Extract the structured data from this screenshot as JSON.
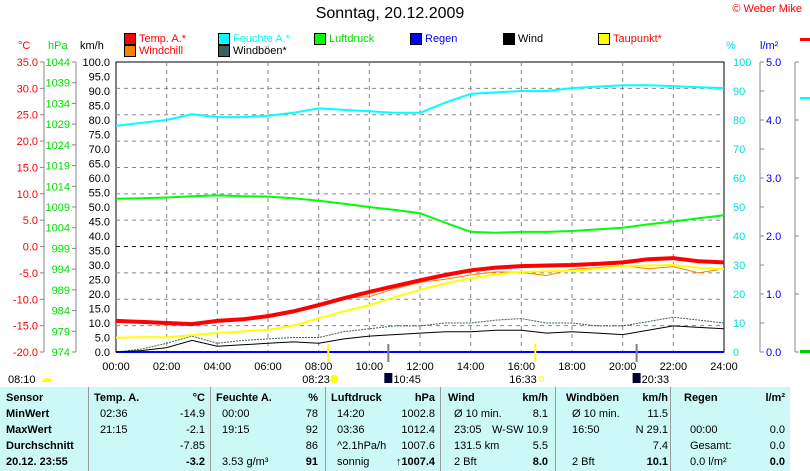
{
  "title": "Sonntag, 20.12.2009",
  "copyright": "© Weber Mike",
  "axis_units": {
    "temp": "°C",
    "pressure": "hPa",
    "wind": "km/h",
    "humidity": "%",
    "rain": "l/m²"
  },
  "legend": [
    {
      "label": "Temp. A.*",
      "color": "#ff0000",
      "text_color": "#ff0000"
    },
    {
      "label": "Feuchte A.*",
      "color": "#00ffff",
      "text_color": "#00ffff"
    },
    {
      "label": "Luftdruck",
      "color": "#00ff00",
      "text_color": "#00dd00"
    },
    {
      "label": "Regen",
      "color": "#0000ff",
      "text_color": "#0000ff"
    },
    {
      "label": "Wind",
      "color": "#000000",
      "text_color": "#000000"
    },
    {
      "label": "Taupunkt*",
      "color": "#ffff00",
      "text_color": "#ff0000"
    },
    {
      "label": "Windchill",
      "color": "#ff8000",
      "text_color": "#ff0000"
    },
    {
      "label": "Windböen*",
      "color": "#406060",
      "text_color": "#000000"
    }
  ],
  "chart_data": {
    "type": "line",
    "xlabel": "",
    "x_ticks": [
      "00:00",
      "02:00",
      "04:00",
      "06:00",
      "08:00",
      "10:00",
      "12:00",
      "14:00",
      "16:00",
      "18:00",
      "20:00",
      "22:00",
      "24:00"
    ],
    "temp_ticks": [
      "35.0",
      "30.0",
      "25.0",
      "20.0",
      "15.0",
      "10.0",
      "5.0",
      "0.0",
      "-5.0",
      "-10.0",
      "-15.0",
      "-20.0"
    ],
    "pressure_ticks": [
      "1044",
      "1039",
      "1034",
      "1029",
      "1024",
      "1019",
      "1014",
      "1009",
      "1004",
      "999",
      "994",
      "989",
      "984",
      "979",
      "974"
    ],
    "wind_ticks": [
      "100.0",
      "95.0",
      "90.0",
      "85.0",
      "80.0",
      "75.0",
      "70.0",
      "65.0",
      "60.0",
      "55.0",
      "50.0",
      "45.0",
      "40.0",
      "35.0",
      "30.0",
      "25.0",
      "20.0",
      "15.0",
      "10.0",
      "5.0",
      "0.0"
    ],
    "humidity_ticks": [
      "100",
      "90",
      "80",
      "70",
      "60",
      "50",
      "40",
      "30",
      "20",
      "10",
      "0"
    ],
    "rain_ticks": [
      "5.0",
      "4.0",
      "3.0",
      "2.0",
      "1.0",
      "0.0"
    ],
    "ranges": {
      "temp": [
        -20,
        35
      ],
      "pressure": [
        974,
        1044
      ],
      "wind": [
        0,
        100
      ],
      "humidity": [
        0,
        100
      ],
      "rain": [
        0,
        5
      ]
    },
    "hours": [
      0,
      1,
      2,
      3,
      4,
      5,
      6,
      7,
      8,
      9,
      10,
      11,
      12,
      13,
      14,
      15,
      16,
      17,
      18,
      19,
      20,
      21,
      22,
      23,
      24
    ],
    "series": [
      {
        "name": "Temp. A.",
        "unit": "°C",
        "color": "#ff0000",
        "values": [
          -14.1,
          -14.3,
          -14.5,
          -14.7,
          -14.1,
          -13.8,
          -13.2,
          -12.3,
          -11.1,
          -9.8,
          -8.6,
          -7.5,
          -6.4,
          -5.4,
          -4.5,
          -4.0,
          -3.7,
          -3.6,
          -3.5,
          -3.3,
          -3.0,
          -2.4,
          -2.2,
          -2.8,
          -3.0
        ]
      },
      {
        "name": "Taupunkt",
        "unit": "°C",
        "color": "#ffff00",
        "values": [
          -17.3,
          -17.2,
          -17.2,
          -16.8,
          -16.4,
          -16.1,
          -15.8,
          -15.0,
          -13.6,
          -12.3,
          -11.1,
          -9.6,
          -8.2,
          -7.0,
          -6.0,
          -5.3,
          -4.8,
          -4.7,
          -4.6,
          -4.2,
          -3.7,
          -3.6,
          -3.5,
          -4.0,
          -4.3
        ]
      },
      {
        "name": "Windchill",
        "unit": "°C",
        "color": "#ff8000",
        "values": [
          -14.1,
          -14.3,
          -14.5,
          -14.7,
          -14.1,
          -13.8,
          -13.2,
          -12.3,
          -11.1,
          -9.8,
          -9.5,
          -8.0,
          -6.8,
          -6.2,
          -5.4,
          -4.8,
          -4.9,
          -5.5,
          -4.3,
          -4.0,
          -3.6,
          -4.2,
          -3.8,
          -5.0,
          -4.2
        ]
      },
      {
        "name": "Feuchte A.",
        "unit": "%",
        "color": "#00ffff",
        "values": [
          78,
          79,
          80,
          82,
          81,
          81,
          81.5,
          82.5,
          84,
          83.5,
          83,
          82.5,
          82.5,
          86,
          89,
          89.5,
          90,
          90,
          91,
          91.5,
          92,
          92,
          91.7,
          91.3,
          91
        ]
      },
      {
        "name": "Luftdruck",
        "unit": "hPa",
        "color": "#00ff00",
        "values": [
          1011,
          1011.1,
          1011.3,
          1011.6,
          1011.8,
          1011.6,
          1011.5,
          1011.1,
          1010.5,
          1009.8,
          1009,
          1008.3,
          1007.5,
          1005.2,
          1003,
          1002.8,
          1003,
          1003,
          1003.2,
          1003.6,
          1004,
          1004.8,
          1005.5,
          1006.3,
          1007
        ]
      },
      {
        "name": "Wind",
        "unit": "km/h",
        "color": "#000000",
        "values": [
          0,
          0.5,
          1.5,
          4,
          2,
          2.5,
          3,
          3.5,
          3,
          4.5,
          5.5,
          6,
          6.5,
          7,
          7,
          7.5,
          7.5,
          6.5,
          7,
          6.5,
          6,
          7.5,
          9,
          8.5,
          8
        ]
      },
      {
        "name": "Windböen",
        "unit": "km/h",
        "color": "#406060",
        "values": [
          0,
          1,
          3,
          5.5,
          3,
          4,
          4.5,
          5,
          5,
          7,
          8,
          9,
          9,
          10,
          10,
          11,
          11.5,
          10,
          10,
          9,
          9,
          10.5,
          12,
          11,
          10
        ]
      },
      {
        "name": "Regen",
        "unit": "l/m²",
        "color": "#0000ff",
        "values": [
          0,
          0,
          0,
          0,
          0,
          0,
          0,
          0,
          0,
          0,
          0,
          0,
          0,
          0,
          0,
          0,
          0,
          0,
          0,
          0,
          0,
          0,
          0,
          0,
          0
        ]
      }
    ],
    "events": [
      {
        "time": "08:10",
        "hour": 8.17,
        "icon": "moon-icon",
        "marker": false
      },
      {
        "time": "08:23",
        "hour": 8.38,
        "icon": "sunrise-icon",
        "marker": "#ffff00"
      },
      {
        "time": "10:45",
        "hour": 10.75,
        "icon": "moonrise-icon",
        "marker": "#808080"
      },
      {
        "time": "16:33",
        "hour": 16.55,
        "icon": "sunset-icon",
        "marker": "#ffff00"
      },
      {
        "time": "20:33",
        "hour": 20.55,
        "icon": "moonset-icon",
        "marker": "#808080"
      }
    ]
  },
  "table": {
    "headers": [
      "Sensor",
      "Temp. A.",
      "°C",
      "Feuchte A.",
      "%",
      "Luftdruck",
      "hPa",
      "Wind",
      "km/h",
      "Windböen",
      "km/h",
      "Regen",
      "l/m²"
    ],
    "rows": [
      [
        "MinWert",
        "02:36",
        "-14.9",
        "00:00",
        "78",
        "14:20",
        "1002.8",
        "Ø 10 min.",
        "8.1",
        "Ø 10 min.",
        "11.5",
        "",
        ""
      ],
      [
        "MaxWert",
        "21:15",
        "-2.1",
        "19:15",
        "92",
        "03:36",
        "1012.4",
        "23:05",
        "W-SW 10.9",
        "16:50",
        "N 29.1",
        "00:00",
        "0.0"
      ],
      [
        "Durchschnitt",
        "",
        "-7.85",
        "",
        "86",
        "^2.1hPa/h",
        "1007.6",
        "131.5 km",
        "5.5",
        "",
        "7.4",
        "Gesamt:",
        "0.0"
      ],
      [
        "20.12. 23:55",
        "",
        "-3.2",
        "3.53 g/m³",
        "91",
        "sonnig",
        "↑1007.4",
        "2 Bft",
        "8.0",
        "2 Bft",
        "10.1",
        "0.0 l/m²",
        "0.0"
      ]
    ]
  }
}
